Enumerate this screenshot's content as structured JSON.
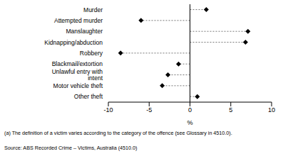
{
  "chart_data": {
    "type": "dot",
    "orientation": "horizontal",
    "categories": [
      "Murder",
      "Attempted murder",
      "Manslaughter",
      "Kidnapping/abduction",
      "Robbery",
      "Blackmail/extortion",
      "Unlawful entry with intent",
      "Motor vehicle theft",
      "Other theft"
    ],
    "values": [
      2.0,
      -6.0,
      7.1,
      6.8,
      -8.5,
      -1.4,
      -2.7,
      -3.4,
      0.9
    ],
    "color": "#000000",
    "marker": "diamond",
    "line_style": "dashed",
    "xlabel": "%",
    "xlim": [
      -10,
      10
    ],
    "xticks": [
      -10,
      -5,
      0,
      5,
      10
    ],
    "grid": false,
    "annotations": [
      "(a) The definition of a victim varies according to the category of the offence (see Glossary in 4510.0).",
      "Source: ABS Recorded Crime – Victims, Australia (4510.0)"
    ]
  }
}
